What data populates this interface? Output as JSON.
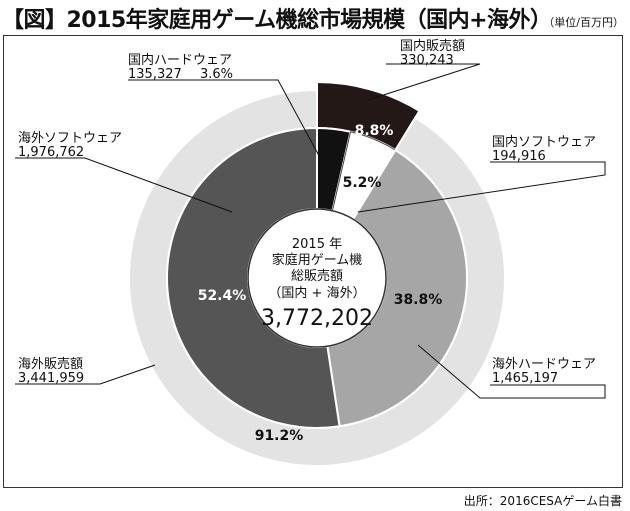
{
  "title": {
    "main": "【図】2015年家庭用ゲーム機総市場規模（国内+海外）",
    "unit": "（単位/百万円）"
  },
  "source": "出所：2016CESAゲーム白書",
  "colors": {
    "domestic_hardware": "#111111",
    "domestic_software": "#ffffff",
    "overseas_hardware": "#a6a6a6",
    "overseas_software": "#555555",
    "domestic_total": "#231815",
    "overseas_total": "#e3e3e3"
  },
  "chart_data": {
    "type": "pie",
    "center": {
      "line1": "2015 年",
      "line2": "家庭用ゲーム機",
      "line3": "総販売額",
      "line4": "（国内 + 海外）",
      "total": "3,772,202"
    },
    "outer_ring": [
      {
        "name": "国内販売額",
        "value": 330243,
        "value_label": "330,243",
        "percent_label": "8.8%"
      },
      {
        "name": "海外販売額",
        "value": 3441959,
        "value_label": "3,441,959",
        "percent_label": "91.2%"
      }
    ],
    "inner_ring": [
      {
        "name": "国内ハードウェア",
        "value": 135327,
        "value_label": "135,327",
        "percent_label": "3.6%"
      },
      {
        "name": "国内ソフトウェア",
        "value": 194916,
        "value_label": "194,916",
        "percent_label": "5.2%"
      },
      {
        "name": "海外ハードウェア",
        "value": 1465197,
        "value_label": "1,465,197",
        "percent_label": "38.8%"
      },
      {
        "name": "海外ソフトウェア",
        "value": 1976762,
        "value_label": "1,976,762",
        "percent_label": "52.4%"
      }
    ]
  }
}
